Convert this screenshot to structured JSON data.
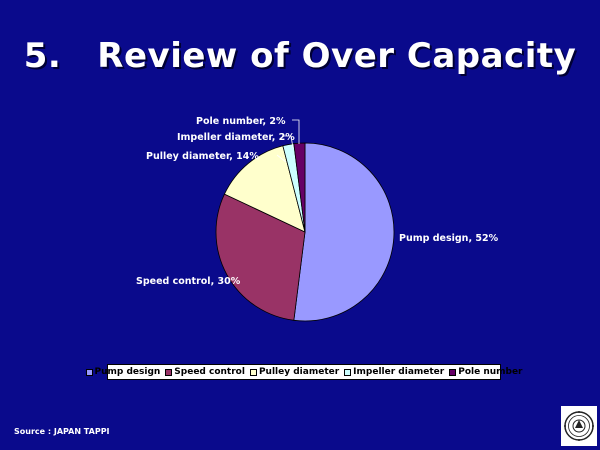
{
  "slide": {
    "number": "5.",
    "title": "Review of Over Capacity",
    "source": "Source : JAPAN TAPPI"
  },
  "chart_data": {
    "type": "pie",
    "title": "",
    "slices": [
      {
        "name": "Pump design",
        "value": 52,
        "label": "Pump design, 52%",
        "color": "#9999ff"
      },
      {
        "name": "Speed control",
        "value": 30,
        "label": "Speed control, 30%",
        "color": "#993366"
      },
      {
        "name": "Pulley diameter",
        "value": 14,
        "label": "Pulley diameter, 14%",
        "color": "#ffffcc"
      },
      {
        "name": "Impeller diameter",
        "value": 2,
        "label": "Impeller diameter, 2%",
        "color": "#ccffff"
      },
      {
        "name": "Pole number",
        "value": 2,
        "label": "Pole number, 2%",
        "color": "#660066"
      }
    ],
    "legend_position": "bottom",
    "legend": [
      "Pump design",
      "Speed control",
      "Pulley diameter",
      "Impeller diameter",
      "Pole number"
    ]
  },
  "colors": {
    "background": "#0a0a8c",
    "title_text": "#ffffff",
    "label_text": "#ffffff"
  }
}
